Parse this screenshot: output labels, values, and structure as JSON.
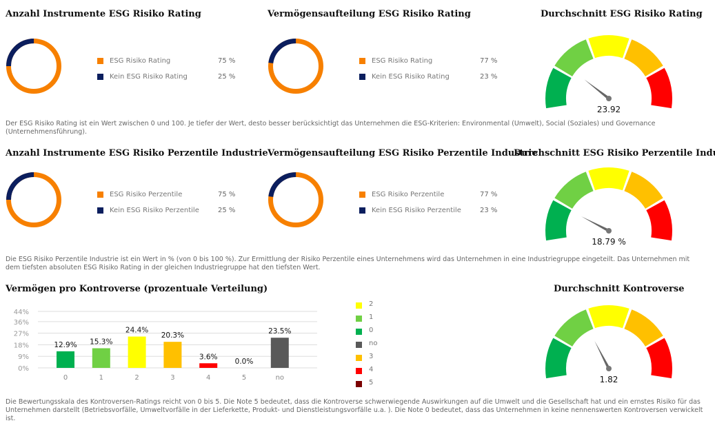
{
  "colors": {
    "orange": "#f78000",
    "navy": "#0b1e5e"
  },
  "gauge_colors": [
    "#00b050",
    "#70d044",
    "#ffff00",
    "#ffc000",
    "#ff0000"
  ],
  "row1": {
    "donut1": {
      "title": "Anzahl Instrumente ESG Risiko Rating",
      "items": [
        {
          "label": "ESG Risiko Rating",
          "value": "75 %",
          "pct": 75
        },
        {
          "label": "Kein ESG Risiko Rating",
          "value": "25 %",
          "pct": 25
        }
      ]
    },
    "donut2": {
      "title": "Vermögensaufteilung ESG Risiko Rating",
      "items": [
        {
          "label": "ESG Risiko Rating",
          "value": "77 %",
          "pct": 77
        },
        {
          "label": "Kein ESG Risiko Rating",
          "value": "23 %",
          "pct": 23
        }
      ]
    },
    "gauge": {
      "title": "Durchschnitt ESG Risiko Rating",
      "value": 23.92,
      "label": "23.92",
      "max": 100
    },
    "description": "Der ESG Risiko Rating ist ein Wert zwischen 0 und 100. Je tiefer der Wert, desto besser berücksichtigt das Unternehmen die ESG-Kriterien: Environmental (Umwelt), Social (Soziales) und Governance (Unternehmensführung)."
  },
  "row2": {
    "donut1": {
      "title": "Anzahl Instrumente ESG Risiko Perzentile Industrie",
      "items": [
        {
          "label": "ESG Risiko Perzentile",
          "value": "75 %",
          "pct": 75
        },
        {
          "label": "Kein ESG Risiko Perzentile",
          "value": "25 %",
          "pct": 25
        }
      ]
    },
    "donut2": {
      "title": "Vermögensaufteilung ESG Risiko Perzentile Industrie",
      "items": [
        {
          "label": "ESG Risiko Perzentile",
          "value": "77 %",
          "pct": 77
        },
        {
          "label": "Kein ESG Risiko Perzentile",
          "value": "23 %",
          "pct": 23
        }
      ]
    },
    "gauge": {
      "title": "Durchschnitt ESG Risiko Perzentile Industrie",
      "value": 18.79,
      "label": "18.79 %",
      "max": 100
    },
    "description": "Die ESG Risiko Perzentile Industrie ist ein Wert in % (von 0 bis 100 %). Zur Ermittlung der Risiko Perzentile eines Unternehmens wird das Unternehmen in eine Industriegruppe eingeteilt. Das Unternehmen mit dem tiefsten absoluten ESG Risiko Rating in der gleichen Industriegruppe hat den tiefsten Wert."
  },
  "row3": {
    "gauge": {
      "title": "Durchschnitt Kontroverse",
      "value": 1.82,
      "label": "1.82",
      "max": 5
    },
    "description": "Die Bewertungsskala des Kontroversen-Ratings reicht von 0 bis 5. Die Note 5 bedeutet, dass die Kontroverse schwerwiegende Auswirkungen auf die Umwelt und die Gesellschaft hat und ein ernstes Risiko für das Unternehmen darstellt (Betriebsvorfälle, Umweltvorfälle in der Lieferkette, Produkt- und Dienstleistungsvorfälle u.a. ). Die Note 0 bedeutet, dass das Unternehmen in keine nennenswerten Kontroversen verwickelt ist."
  },
  "chart_data": {
    "type": "bar",
    "title": "Vermögen pro Kontroverse (prozentuale Verteilung)",
    "categories": [
      "0",
      "1",
      "2",
      "3",
      "4",
      "5",
      "no"
    ],
    "values": [
      12.9,
      15.3,
      24.4,
      20.3,
      3.6,
      0.0,
      23.5
    ],
    "data_labels": [
      "12.9%",
      "15.3%",
      "24.4%",
      "20.3%",
      "3.6%",
      "0.0%",
      "23.5%"
    ],
    "colors": [
      "#00b050",
      "#70d044",
      "#ffff00",
      "#ffc000",
      "#ff0000",
      "#7b0000",
      "#595959"
    ],
    "yticks": [
      "0%",
      "9%",
      "18%",
      "27%",
      "36%",
      "44%"
    ],
    "ytick_values": [
      0,
      9,
      18,
      27,
      36,
      44
    ],
    "ylim": [
      0,
      44
    ],
    "grid": true,
    "legend_position": "right",
    "legend": [
      {
        "label": "2",
        "color": "#ffff00"
      },
      {
        "label": "1",
        "color": "#70d044"
      },
      {
        "label": "0",
        "color": "#00b050"
      },
      {
        "label": "no",
        "color": "#595959"
      },
      {
        "label": "3",
        "color": "#ffc000"
      },
      {
        "label": "4",
        "color": "#ff0000"
      },
      {
        "label": "5",
        "color": "#7b0000"
      }
    ]
  }
}
